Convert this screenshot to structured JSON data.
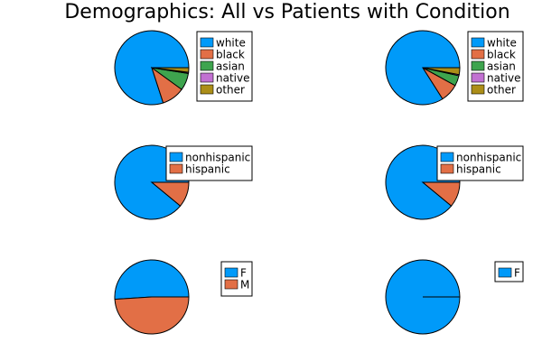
{
  "title": "Demographics: All vs Patients with Condition",
  "colors": {
    "white": "#009af9",
    "black": "#e26f46",
    "asian": "#3ea44e",
    "native": "#c271d2",
    "other": "#ac8e18",
    "nonhispanic": "#009af9",
    "hispanic": "#e26f46",
    "F": "#009af9",
    "M": "#e26f46"
  },
  "chart_data": [
    {
      "type": "pie",
      "panel": "row1-left",
      "categories": [
        "white",
        "black",
        "asian",
        "native",
        "other"
      ],
      "values": [
        0.8,
        0.1,
        0.075,
        0.005,
        0.02
      ]
    },
    {
      "type": "pie",
      "panel": "row1-right",
      "categories": [
        "white",
        "black",
        "asian",
        "native",
        "other"
      ],
      "values": [
        0.84,
        0.08,
        0.045,
        0.005,
        0.03
      ]
    },
    {
      "type": "pie",
      "panel": "row2-left",
      "categories": [
        "nonhispanic",
        "hispanic"
      ],
      "values": [
        0.89,
        0.11
      ]
    },
    {
      "type": "pie",
      "panel": "row2-right",
      "categories": [
        "nonhispanic",
        "hispanic"
      ],
      "values": [
        0.89,
        0.11
      ]
    },
    {
      "type": "pie",
      "panel": "row3-left",
      "categories": [
        "F",
        "M"
      ],
      "values": [
        0.51,
        0.49
      ]
    },
    {
      "type": "pie",
      "panel": "row3-right",
      "categories": [
        "F"
      ],
      "values": [
        1.0
      ]
    }
  ]
}
